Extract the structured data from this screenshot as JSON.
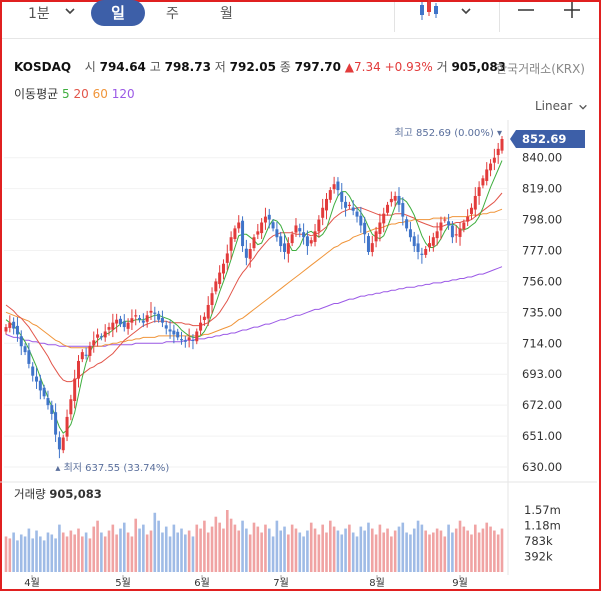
{
  "toolbar": {
    "interval_label": "1분",
    "tabs": [
      "일",
      "주",
      "월"
    ],
    "active_tab": "일",
    "icons": [
      "chevron-down-icon",
      "candlestick-icon",
      "chevron-down-icon",
      "minus-icon",
      "plus-icon"
    ]
  },
  "header": {
    "symbol": "KOSDAQ",
    "open_label": "시",
    "open": "794.64",
    "high_label": "고",
    "high": "798.73",
    "low_label": "저",
    "low": "792.05",
    "close_label": "종",
    "close": "797.70",
    "change": "▲7.34",
    "change_pct": "+0.93%",
    "volume_label": "거",
    "volume": "905,083",
    "exchange": "한국거래소(KRX)"
  },
  "moving_average": {
    "label": "이동평균",
    "periods": [
      {
        "value": "5",
        "color": "#3fae3f"
      },
      {
        "value": "20",
        "color": "#e2554a"
      },
      {
        "value": "60",
        "color": "#f0953a"
      },
      {
        "value": "120",
        "color": "#9b59e6"
      }
    ]
  },
  "scale_mode": "Linear",
  "chart_data": {
    "type": "candlestick",
    "price_axis": {
      "ticks": [
        "840.00",
        "819.00",
        "798.00",
        "777.00",
        "756.00",
        "735.00",
        "714.00",
        "693.00",
        "672.00",
        "651.00",
        "630.00"
      ],
      "range": [
        630,
        852.69
      ]
    },
    "last_price": "852.69",
    "high_marker": "최고 852.69 (0.00%)",
    "low_marker": "최저 637.55 (33.74%)",
    "volume_label": "거래량",
    "volume_value": "905,083",
    "volume_axis_ticks": [
      "1.57m",
      "1.18m",
      "783k",
      "392k"
    ],
    "x_ticks": [
      "4월",
      "5월",
      "6월",
      "7월",
      "8월",
      "9월"
    ],
    "up_color": "#e23b3b",
    "down_color": "#3f74c9",
    "close": [
      725,
      728,
      724,
      720,
      712,
      708,
      700,
      692,
      688,
      682,
      678,
      672,
      666,
      652,
      642,
      650,
      664,
      676,
      690,
      702,
      708,
      706,
      712,
      716,
      720,
      718,
      722,
      725,
      728,
      730,
      727,
      725,
      728,
      731,
      733,
      730,
      728,
      733,
      736,
      734,
      730,
      728,
      724,
      722,
      720,
      718,
      716,
      715,
      718,
      716,
      722,
      728,
      732,
      740,
      748,
      756,
      762,
      768,
      775,
      786,
      792,
      796,
      780,
      772,
      778,
      786,
      790,
      796,
      800,
      798,
      792,
      786,
      780,
      776,
      782,
      788,
      794,
      790,
      786,
      780,
      784,
      790,
      798,
      806,
      812,
      818,
      822,
      818,
      810,
      806,
      808,
      804,
      800,
      794,
      788,
      776,
      782,
      790,
      796,
      802,
      808,
      812,
      814,
      808,
      800,
      792,
      786,
      780,
      776,
      774,
      778,
      782,
      786,
      790,
      796,
      798,
      794,
      786,
      788,
      792,
      796,
      800,
      806,
      814,
      820,
      826,
      832,
      836,
      840,
      846,
      852.69
    ],
    "ma5": [
      730,
      728,
      726,
      723,
      719,
      715,
      710,
      704,
      698,
      691,
      684,
      677,
      671,
      664,
      657,
      653,
      655,
      659,
      667,
      679,
      691,
      701,
      708,
      713,
      716,
      718,
      720,
      721,
      723,
      725,
      727,
      729,
      729,
      729,
      730,
      730,
      730,
      731,
      732,
      733,
      733,
      732,
      731,
      730,
      728,
      726,
      723,
      721,
      719,
      718,
      718,
      719,
      722,
      727,
      734,
      741,
      749,
      756,
      763,
      771,
      779,
      787,
      788,
      788,
      786,
      784,
      781,
      782,
      788,
      794,
      798,
      797,
      794,
      788,
      782,
      777,
      777,
      780,
      786,
      789,
      790,
      788,
      786,
      788,
      792,
      800,
      808,
      814,
      817,
      817,
      814,
      809,
      806,
      803,
      799,
      793,
      788,
      786,
      785,
      787,
      793,
      800,
      807,
      812,
      812,
      810,
      806,
      801,
      794,
      787,
      782,
      779,
      779,
      781,
      785,
      790,
      794,
      795,
      794,
      791,
      791,
      792,
      794,
      796,
      800,
      806,
      813,
      820,
      826,
      832,
      838
    ],
    "ma20": [
      740,
      738,
      736,
      733,
      731,
      728,
      725,
      721,
      717,
      713,
      709,
      705,
      700,
      696,
      692,
      689,
      688,
      688,
      689,
      691,
      693,
      695,
      697,
      698,
      700,
      701,
      703,
      705,
      707,
      710,
      713,
      716,
      718,
      720,
      722,
      724,
      726,
      727,
      728,
      729,
      729,
      729,
      729,
      728,
      728,
      728,
      728,
      727,
      727,
      726,
      726,
      726,
      727,
      728,
      730,
      732,
      735,
      739,
      743,
      748,
      753,
      758,
      762,
      765,
      769,
      772,
      776,
      779,
      782,
      785,
      787,
      788,
      789,
      789,
      789,
      789,
      788,
      788,
      788,
      788,
      787,
      788,
      789,
      791,
      793,
      796,
      799,
      801,
      803,
      804,
      805,
      805,
      806,
      806,
      805,
      804,
      803,
      802,
      801,
      801,
      801,
      801,
      802,
      802,
      802,
      801,
      800,
      799,
      797,
      796,
      795,
      794,
      793,
      793,
      793,
      794,
      795,
      795,
      796,
      796,
      797,
      797,
      798,
      800,
      802,
      804,
      806,
      808,
      810,
      813,
      816
    ],
    "ma60": [
      735,
      734,
      733,
      732,
      731,
      730,
      729,
      727,
      726,
      724,
      722,
      720,
      718,
      716,
      715,
      713,
      712,
      711,
      711,
      711,
      711,
      711,
      711,
      712,
      712,
      712,
      713,
      713,
      714,
      714,
      715,
      715,
      716,
      716,
      717,
      717,
      718,
      718,
      718,
      718,
      719,
      719,
      719,
      719,
      719,
      719,
      719,
      719,
      719,
      719,
      719,
      719,
      720,
      720,
      721,
      722,
      723,
      724,
      725,
      726,
      728,
      730,
      731,
      733,
      735,
      737,
      739,
      741,
      743,
      745,
      747,
      749,
      751,
      753,
      755,
      757,
      759,
      761,
      763,
      765,
      767,
      769,
      771,
      773,
      775,
      777,
      779,
      780,
      782,
      783,
      784,
      786,
      787,
      788,
      789,
      790,
      791,
      792,
      792,
      793,
      794,
      795,
      795,
      796,
      796,
      797,
      797,
      798,
      798,
      798,
      798,
      798,
      799,
      799,
      799,
      799,
      799,
      800,
      800,
      800,
      800,
      800,
      801,
      801,
      801,
      802,
      802,
      803,
      803,
      804,
      805
    ],
    "ma120": [
      720,
      719,
      718,
      718,
      717,
      716,
      716,
      715,
      715,
      714,
      714,
      713,
      713,
      713,
      712,
      712,
      712,
      712,
      712,
      712,
      712,
      712,
      712,
      712,
      712,
      712,
      712,
      713,
      713,
      713,
      713,
      713,
      713,
      713,
      714,
      714,
      714,
      714,
      714,
      714,
      714,
      714,
      715,
      715,
      715,
      715,
      715,
      716,
      716,
      716,
      717,
      717,
      717,
      718,
      718,
      719,
      719,
      720,
      720,
      721,
      721,
      722,
      723,
      723,
      724,
      725,
      725,
      726,
      727,
      727,
      728,
      729,
      730,
      730,
      731,
      732,
      733,
      733,
      734,
      735,
      736,
      737,
      737,
      738,
      739,
      740,
      741,
      741,
      742,
      743,
      744,
      744,
      745,
      746,
      746,
      747,
      747,
      748,
      748,
      749,
      749,
      750,
      750,
      751,
      751,
      752,
      752,
      752,
      753,
      753,
      754,
      754,
      755,
      755,
      755,
      756,
      756,
      757,
      757,
      758,
      758,
      759,
      759,
      760,
      761,
      761,
      762,
      763,
      764,
      765,
      766
    ],
    "volume": [
      0.9,
      0.85,
      1.0,
      0.8,
      0.95,
      0.9,
      1.1,
      0.85,
      1.05,
      0.9,
      0.8,
      1.0,
      0.95,
      0.85,
      1.2,
      1.0,
      0.9,
      1.05,
      0.95,
      1.1,
      0.9,
      1.0,
      0.85,
      1.15,
      1.3,
      1.0,
      0.9,
      1.05,
      1.2,
      0.95,
      1.1,
      1.25,
      1.0,
      0.9,
      1.35,
      1.1,
      1.2,
      0.95,
      1.05,
      1.5,
      1.3,
      1.0,
      1.15,
      0.9,
      1.2,
      1.0,
      1.1,
      0.95,
      1.05,
      0.9,
      1.2,
      1.1,
      1.3,
      1.0,
      1.15,
      1.4,
      1.25,
      1.1,
      1.57,
      1.35,
      1.2,
      1.05,
      1.3,
      1.1,
      0.95,
      1.25,
      1.15,
      1.0,
      1.2,
      1.1,
      0.9,
      1.3,
      1.05,
      1.15,
      0.95,
      1.2,
      1.1,
      1.0,
      0.9,
      1.05,
      1.25,
      1.1,
      0.95,
      1.2,
      1.0,
      1.3,
      1.15,
      1.05,
      0.95,
      1.1,
      1.2,
      1.0,
      0.9,
      1.15,
      1.05,
      1.25,
      1.1,
      0.95,
      1.2,
      1.0,
      1.1,
      0.9,
      1.05,
      1.15,
      1.25,
      1.0,
      0.95,
      1.1,
      1.3,
      1.2,
      1.05,
      0.95,
      1.0,
      1.1,
      1.05,
      0.9,
      1.2,
      1.0,
      1.1,
      1.3,
      1.15,
      1.05,
      0.95,
      1.2,
      1.0,
      1.1,
      1.25,
      1.15,
      1.05,
      0.95,
      1.1
    ]
  }
}
